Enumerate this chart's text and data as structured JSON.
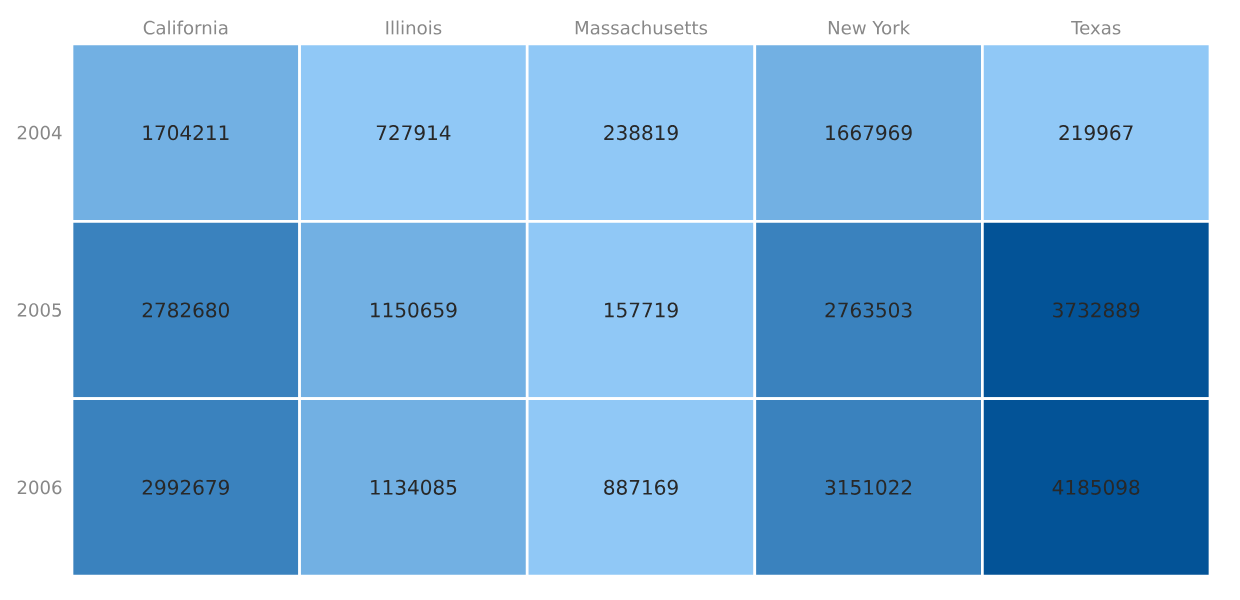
{
  "chart_data": {
    "type": "heatmap",
    "categories": [
      "California",
      "Illinois",
      "Massachusetts",
      "New York",
      "Texas"
    ],
    "y_categories": [
      "2004",
      "2005",
      "2006"
    ],
    "cells": [
      [
        1704211,
        727914,
        238819,
        1667969,
        219967
      ],
      [
        2782680,
        1150659,
        157719,
        2763503,
        3732889
      ],
      [
        2992679,
        1134085,
        887169,
        3151022,
        4185098
      ]
    ],
    "colors": [
      [
        "#72b0e3",
        "#90c8f6",
        "#90c8f6",
        "#72b0e3",
        "#90c8f6"
      ],
      [
        "#3a82be",
        "#72b0e3",
        "#90c8f6",
        "#3a82be",
        "#035397"
      ],
      [
        "#3a82be",
        "#72b0e3",
        "#90c8f6",
        "#3a82be",
        "#035397"
      ]
    ],
    "data_labels": true
  }
}
